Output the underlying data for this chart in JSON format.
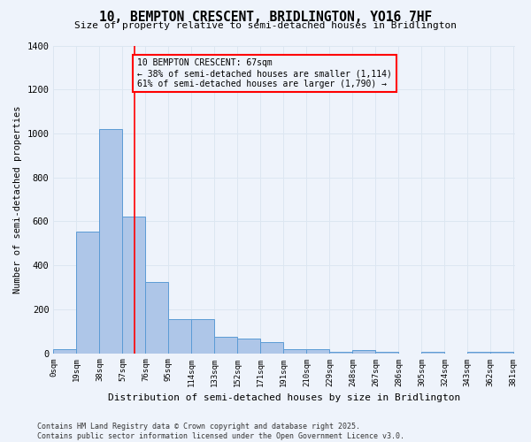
{
  "title": "10, BEMPTON CRESCENT, BRIDLINGTON, YO16 7HF",
  "subtitle": "Size of property relative to semi-detached houses in Bridlington",
  "xlabel": "Distribution of semi-detached houses by size in Bridlington",
  "ylabel": "Number of semi-detached properties",
  "bin_labels": [
    "0sqm",
    "19sqm",
    "38sqm",
    "57sqm",
    "76sqm",
    "95sqm",
    "114sqm",
    "133sqm",
    "152sqm",
    "171sqm",
    "191sqm",
    "210sqm",
    "229sqm",
    "248sqm",
    "267sqm",
    "286sqm",
    "305sqm",
    "324sqm",
    "343sqm",
    "362sqm",
    "381sqm"
  ],
  "bar_values": [
    20,
    555,
    1020,
    620,
    325,
    155,
    155,
    75,
    65,
    50,
    20,
    20,
    8,
    15,
    8,
    0,
    8,
    0,
    8,
    8
  ],
  "bar_color": "#aec6e8",
  "bar_edge_color": "#5b9bd5",
  "grid_color": "#dce6f1",
  "bg_color": "#eef3fb",
  "property_value": 67,
  "annotation_text": "10 BEMPTON CRESCENT: 67sqm\n← 38% of semi-detached houses are smaller (1,114)\n61% of semi-detached houses are larger (1,790) →",
  "footer_line1": "Contains HM Land Registry data © Crown copyright and database right 2025.",
  "footer_line2": "Contains public sector information licensed under the Open Government Licence v3.0.",
  "ylim": [
    0,
    1400
  ],
  "yticks": [
    0,
    200,
    400,
    600,
    800,
    1000,
    1200,
    1400
  ]
}
